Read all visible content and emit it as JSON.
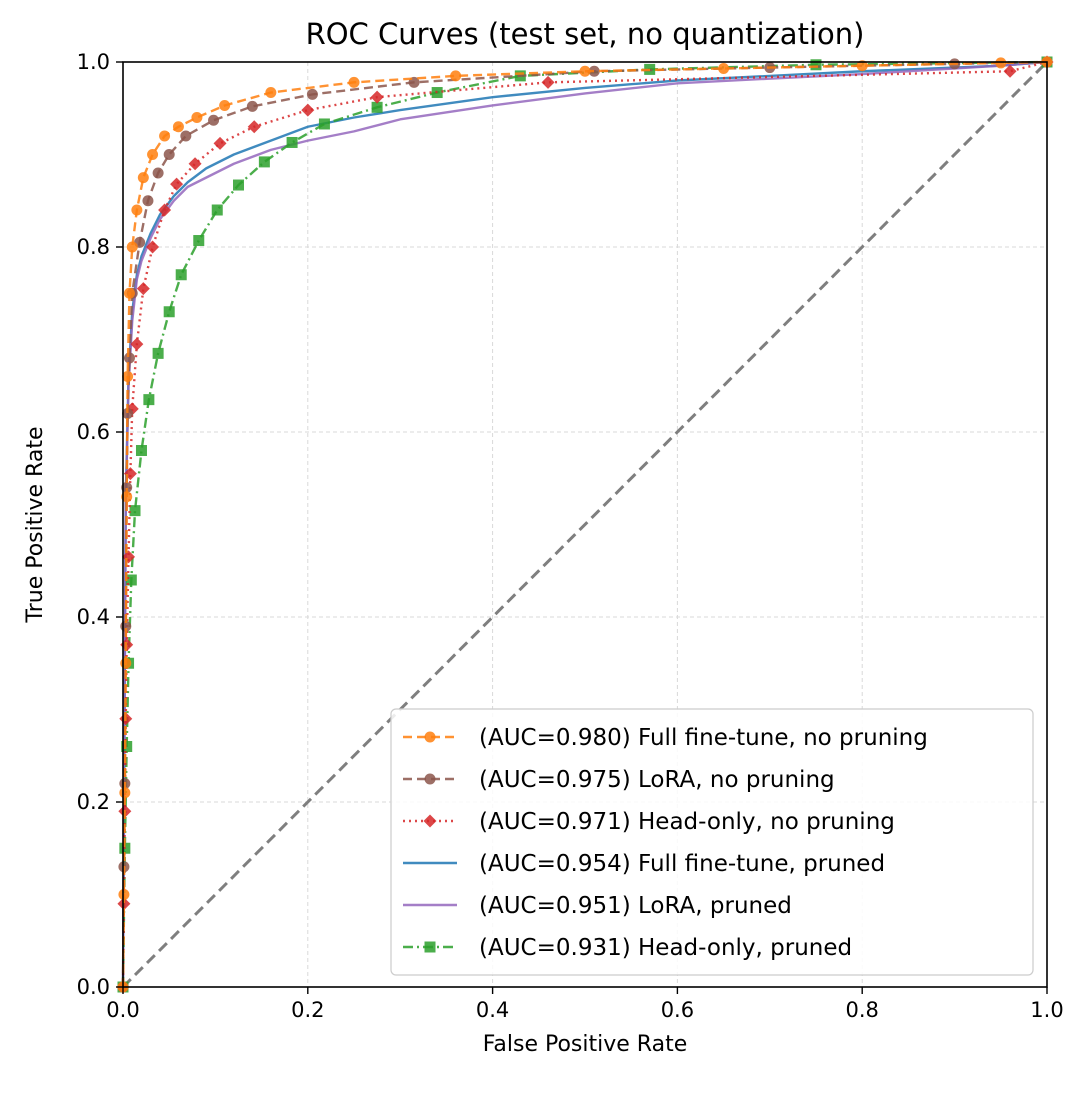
{
  "chart_data": {
    "type": "line",
    "title": "ROC Curves (test set, no quantization)",
    "xlabel": "False Positive Rate",
    "ylabel": "True Positive Rate",
    "xlim": [
      0,
      1
    ],
    "ylim": [
      0,
      1
    ],
    "xticks": [
      "0.0",
      "0.2",
      "0.4",
      "0.6",
      "0.8",
      "1.0"
    ],
    "yticks": [
      "0.0",
      "0.2",
      "0.4",
      "0.6",
      "0.8",
      "1.0"
    ],
    "grid": true,
    "legend_position": "lower-right",
    "reference_line": {
      "x": [
        0,
        1
      ],
      "y": [
        0,
        1
      ],
      "color": "#7f7f7f",
      "style": "dashed"
    },
    "series": [
      {
        "name": "(AUC=0.980) Full fine-tune, no pruning",
        "color": "#ff7f0e",
        "line_style": "dashed",
        "marker": "circle",
        "x": [
          0,
          0.001,
          0.002,
          0.003,
          0.004,
          0.005,
          0.007,
          0.01,
          0.015,
          0.022,
          0.032,
          0.045,
          0.06,
          0.08,
          0.11,
          0.16,
          0.25,
          0.36,
          0.5,
          0.65,
          0.8,
          0.95,
          1.0
        ],
        "y": [
          0,
          0.1,
          0.21,
          0.35,
          0.53,
          0.66,
          0.75,
          0.8,
          0.84,
          0.875,
          0.9,
          0.92,
          0.93,
          0.94,
          0.953,
          0.967,
          0.978,
          0.985,
          0.99,
          0.993,
          0.996,
          0.999,
          1.0
        ]
      },
      {
        "name": "(AUC=0.975) LoRA, no pruning",
        "color": "#8c564b",
        "line_style": "dashed",
        "marker": "circle",
        "x": [
          0,
          0.001,
          0.002,
          0.003,
          0.004,
          0.005,
          0.007,
          0.01,
          0.018,
          0.027,
          0.038,
          0.05,
          0.068,
          0.098,
          0.14,
          0.205,
          0.315,
          0.51,
          0.7,
          0.9,
          1.0
        ],
        "y": [
          0,
          0.13,
          0.22,
          0.39,
          0.54,
          0.62,
          0.68,
          0.75,
          0.805,
          0.85,
          0.88,
          0.9,
          0.92,
          0.937,
          0.952,
          0.965,
          0.978,
          0.99,
          0.994,
          0.998,
          1.0
        ]
      },
      {
        "name": "(AUC=0.971) Head-only, no pruning",
        "color": "#d62728",
        "line_style": "dotted",
        "marker": "diamond",
        "x": [
          0,
          0.001,
          0.002,
          0.003,
          0.004,
          0.006,
          0.008,
          0.01,
          0.015,
          0.022,
          0.032,
          0.045,
          0.058,
          0.078,
          0.105,
          0.142,
          0.2,
          0.275,
          0.46,
          0.96,
          1.0
        ],
        "y": [
          0,
          0.09,
          0.19,
          0.29,
          0.37,
          0.465,
          0.555,
          0.625,
          0.695,
          0.755,
          0.8,
          0.84,
          0.868,
          0.89,
          0.912,
          0.93,
          0.948,
          0.962,
          0.978,
          0.99,
          1.0
        ]
      },
      {
        "name": "(AUC=0.954) Full fine-tune, pruned",
        "color": "#1f77b4",
        "line_style": "solid",
        "marker": "none",
        "x": [
          0,
          0.003,
          0.006,
          0.01,
          0.015,
          0.02,
          0.03,
          0.04,
          0.055,
          0.07,
          0.09,
          0.12,
          0.16,
          0.2,
          0.25,
          0.3,
          0.4,
          0.5,
          0.6,
          0.8,
          0.95,
          1.0
        ],
        "y": [
          0,
          0.53,
          0.66,
          0.73,
          0.77,
          0.79,
          0.815,
          0.835,
          0.855,
          0.87,
          0.885,
          0.9,
          0.915,
          0.93,
          0.94,
          0.948,
          0.962,
          0.972,
          0.98,
          0.99,
          0.996,
          1.0
        ]
      },
      {
        "name": "(AUC=0.951) LoRA, pruned",
        "color": "#9467bd",
        "line_style": "solid",
        "marker": "none",
        "x": [
          0,
          0.003,
          0.006,
          0.01,
          0.015,
          0.02,
          0.03,
          0.04,
          0.055,
          0.07,
          0.09,
          0.12,
          0.16,
          0.2,
          0.25,
          0.3,
          0.4,
          0.5,
          0.6,
          0.8,
          0.95,
          1.0
        ],
        "y": [
          0,
          0.52,
          0.65,
          0.72,
          0.765,
          0.785,
          0.81,
          0.83,
          0.85,
          0.865,
          0.875,
          0.89,
          0.905,
          0.915,
          0.925,
          0.938,
          0.953,
          0.966,
          0.977,
          0.987,
          0.996,
          1.0
        ]
      },
      {
        "name": "(AUC=0.931) Head-only, pruned",
        "color": "#2ca02c",
        "line_style": "dashdot",
        "marker": "square",
        "x": [
          0,
          0.002,
          0.004,
          0.006,
          0.009,
          0.013,
          0.02,
          0.028,
          0.038,
          0.05,
          0.063,
          0.082,
          0.102,
          0.125,
          0.153,
          0.183,
          0.218,
          0.275,
          0.34,
          0.43,
          0.57,
          0.75,
          1.0
        ],
        "y": [
          0,
          0.15,
          0.26,
          0.35,
          0.44,
          0.515,
          0.58,
          0.635,
          0.685,
          0.73,
          0.77,
          0.807,
          0.84,
          0.867,
          0.892,
          0.913,
          0.933,
          0.951,
          0.967,
          0.985,
          0.992,
          0.997,
          1.0
        ]
      }
    ]
  }
}
